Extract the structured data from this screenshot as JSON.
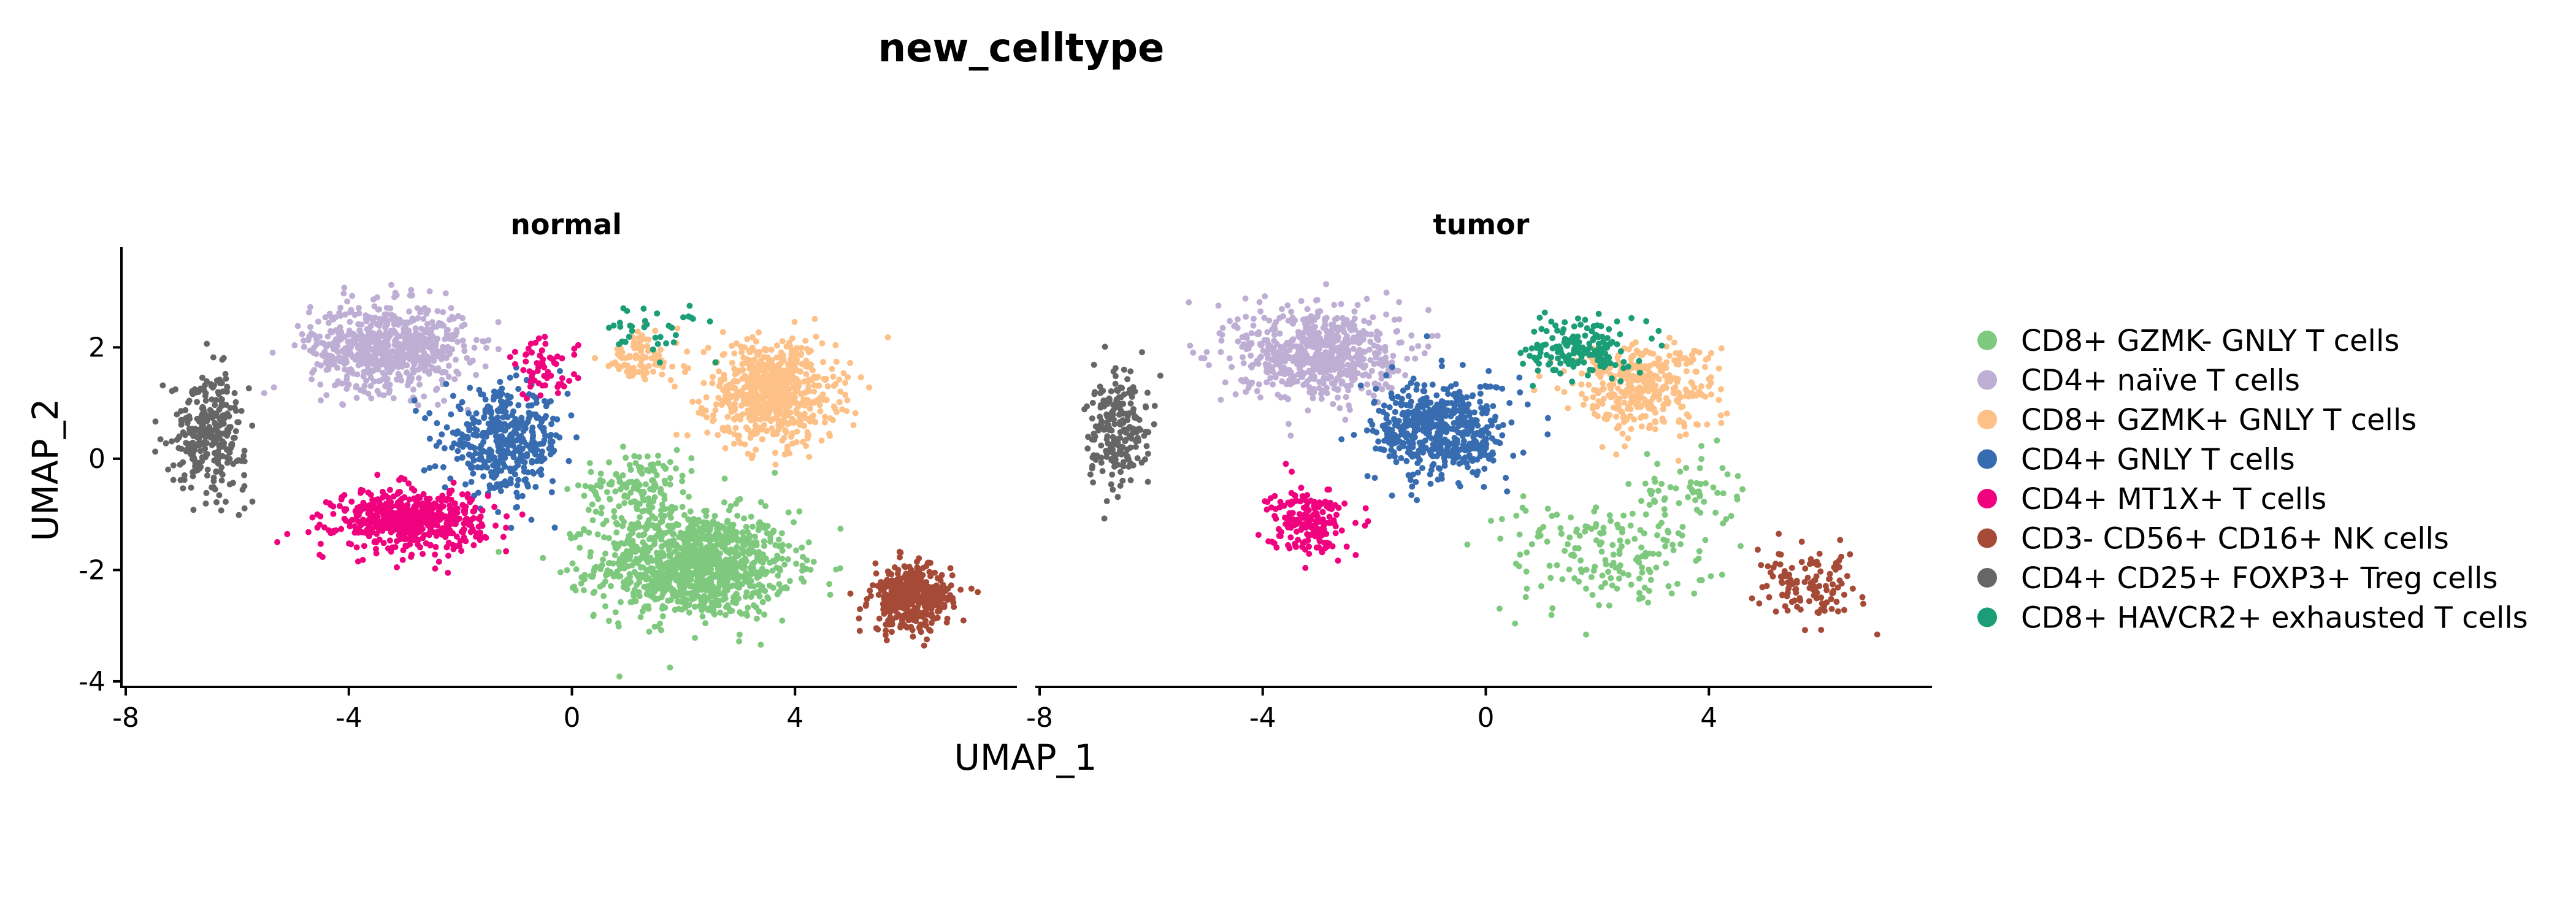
{
  "chart_data": {
    "type": "scatter",
    "title": "new_celltype",
    "xlabel": "UMAP_1",
    "ylabel": "UMAP_2",
    "xlim": [
      -8,
      8
    ],
    "ylim": [
      -4.1,
      3.8
    ],
    "xticks": [
      -8,
      -4,
      0,
      4
    ],
    "xtick_labels": [
      "-8",
      "-4",
      "0",
      "4"
    ],
    "yticks": [
      -4,
      -2,
      0,
      2
    ],
    "ytick_labels": [
      "-4",
      "-2",
      "0",
      "2"
    ],
    "legend_position": "right",
    "panels": [
      {
        "name": "normal",
        "label": "normal",
        "show_yaxis": true
      },
      {
        "name": "tumor",
        "label": "tumor",
        "show_yaxis": false
      }
    ],
    "series": [
      {
        "name": "CD8+ GZMK- GNLY T cells",
        "color": "#7FC97F",
        "clusters": {
          "normal": [
            {
              "cx": 2.2,
              "cy": -1.9,
              "sx": 1.45,
              "sy": 0.8,
              "n": 1100
            },
            {
              "cx": 1.2,
              "cy": -0.5,
              "sx": 0.8,
              "sy": 0.55,
              "n": 150
            }
          ],
          "tumor": [
            {
              "cx": 2.2,
              "cy": -1.7,
              "sx": 1.6,
              "sy": 0.9,
              "n": 180
            },
            {
              "cx": 3.5,
              "cy": -0.5,
              "sx": 0.8,
              "sy": 0.5,
              "n": 50
            }
          ]
        }
      },
      {
        "name": "CD4+ naïve T cells",
        "color": "#BEAED4",
        "clusters": {
          "normal": [
            {
              "cx": -3.3,
              "cy": 2.0,
              "sx": 1.15,
              "sy": 0.65,
              "n": 700
            }
          ],
          "tumor": [
            {
              "cx": -3.0,
              "cy": 1.9,
              "sx": 1.2,
              "sy": 0.7,
              "n": 650
            }
          ]
        }
      },
      {
        "name": "CD8+ GZMK+ GNLY T cells",
        "color": "#FDC086",
        "clusters": {
          "normal": [
            {
              "cx": 3.6,
              "cy": 1.2,
              "sx": 0.95,
              "sy": 0.75,
              "n": 700
            },
            {
              "cx": 1.2,
              "cy": 1.8,
              "sx": 0.6,
              "sy": 0.4,
              "n": 90
            }
          ],
          "tumor": [
            {
              "cx": 2.8,
              "cy": 1.3,
              "sx": 1.1,
              "sy": 0.65,
              "n": 380
            }
          ]
        }
      },
      {
        "name": "CD4+ GNLY T cells",
        "color": "#386CB0",
        "clusters": {
          "normal": [
            {
              "cx": -1.2,
              "cy": 0.3,
              "sx": 0.9,
              "sy": 0.75,
              "n": 420
            }
          ],
          "tumor": [
            {
              "cx": -0.8,
              "cy": 0.5,
              "sx": 1.0,
              "sy": 0.75,
              "n": 520
            }
          ]
        }
      },
      {
        "name": "CD4+ MT1X+ T cells",
        "color": "#F0027F",
        "clusters": {
          "normal": [
            {
              "cx": -2.9,
              "cy": -1.1,
              "sx": 1.1,
              "sy": 0.45,
              "n": 560
            },
            {
              "cx": -0.5,
              "cy": 1.6,
              "sx": 0.5,
              "sy": 0.45,
              "n": 60
            }
          ],
          "tumor": [
            {
              "cx": -3.2,
              "cy": -1.1,
              "sx": 0.55,
              "sy": 0.5,
              "n": 190
            }
          ]
        }
      },
      {
        "name": "CD3- CD56+ CD16+ NK cells",
        "color": "#A54A37",
        "clusters": {
          "normal": [
            {
              "cx": 6.1,
              "cy": -2.5,
              "sx": 0.6,
              "sy": 0.5,
              "n": 380
            }
          ],
          "tumor": [
            {
              "cx": 5.8,
              "cy": -2.3,
              "sx": 0.75,
              "sy": 0.5,
              "n": 120
            }
          ]
        }
      },
      {
        "name": "CD4+ CD25+ FOXP3+ Treg cells",
        "color": "#666666",
        "clusters": {
          "normal": [
            {
              "cx": -6.5,
              "cy": 0.5,
              "sx": 0.55,
              "sy": 0.85,
              "n": 300
            }
          ],
          "tumor": [
            {
              "cx": -6.6,
              "cy": 0.5,
              "sx": 0.45,
              "sy": 0.85,
              "n": 220
            }
          ]
        }
      },
      {
        "name": "CD8+ HAVCR2+ exhausted T cells",
        "color": "#1B9E77",
        "clusters": {
          "normal": [
            {
              "cx": 1.5,
              "cy": 2.3,
              "sx": 0.9,
              "sy": 0.35,
              "n": 35
            }
          ],
          "tumor": [
            {
              "cx": 1.7,
              "cy": 2.0,
              "sx": 0.75,
              "sy": 0.45,
              "n": 160
            }
          ]
        }
      }
    ]
  }
}
